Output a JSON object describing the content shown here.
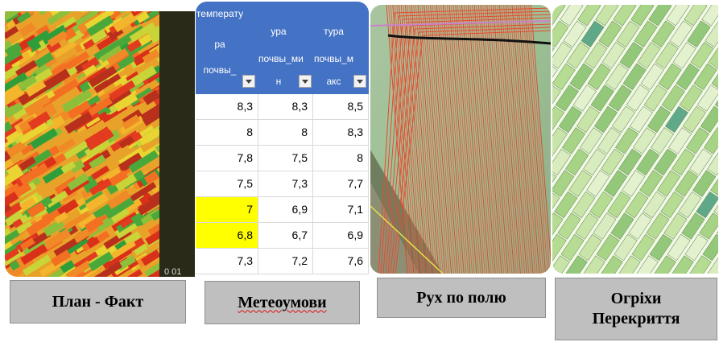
{
  "panels": [
    {
      "caption": "План - Факт",
      "overlay_text": "0 01"
    },
    {
      "caption": "Метеоумови",
      "table": {
        "headers": [
          [
            "температу",
            "ра",
            "почвы_"
          ],
          [
            "ура",
            "почвы_ми",
            "н"
          ],
          [
            "тура",
            "почвы_м",
            "акс"
          ]
        ],
        "rows": [
          [
            "8,3",
            "8,3",
            "8,5"
          ],
          [
            "8",
            "8",
            "8,3"
          ],
          [
            "7,8",
            "7,5",
            "8"
          ],
          [
            "7,5",
            "7,3",
            "7,7"
          ],
          [
            "7",
            "6,9",
            "7,1"
          ],
          [
            "6,8",
            "6,7",
            "6,9"
          ],
          [
            "7,3",
            "7,2",
            "7,6"
          ]
        ],
        "highlighted_rows": [
          4,
          5
        ]
      }
    },
    {
      "caption": "Рух по полю"
    },
    {
      "caption_lines": [
        "Огріхи",
        "Перекриття"
      ]
    }
  ],
  "colors": {
    "caption_bg": "#bfbfbf",
    "table_header": "#4472c4",
    "highlight": "#ffff00"
  }
}
